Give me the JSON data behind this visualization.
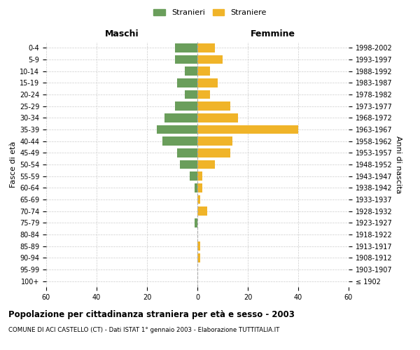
{
  "age_groups": [
    "100+",
    "95-99",
    "90-94",
    "85-89",
    "80-84",
    "75-79",
    "70-74",
    "65-69",
    "60-64",
    "55-59",
    "50-54",
    "45-49",
    "40-44",
    "35-39",
    "30-34",
    "25-29",
    "20-24",
    "15-19",
    "10-14",
    "5-9",
    "0-4"
  ],
  "birth_years": [
    "≤ 1902",
    "1903-1907",
    "1908-1912",
    "1913-1917",
    "1918-1922",
    "1923-1927",
    "1928-1932",
    "1933-1937",
    "1938-1942",
    "1943-1947",
    "1948-1952",
    "1953-1957",
    "1958-1962",
    "1963-1967",
    "1968-1972",
    "1973-1977",
    "1978-1982",
    "1983-1987",
    "1988-1992",
    "1993-1997",
    "1998-2002"
  ],
  "maschi": [
    0,
    0,
    0,
    0,
    0,
    1,
    0,
    0,
    1,
    3,
    7,
    8,
    14,
    16,
    13,
    9,
    5,
    8,
    5,
    9,
    9
  ],
  "femmine": [
    0,
    0,
    1,
    1,
    0,
    0,
    4,
    1,
    2,
    2,
    7,
    13,
    14,
    40,
    16,
    13,
    5,
    8,
    5,
    10,
    7
  ],
  "color_maschi": "#6a9e5b",
  "color_femmine": "#f0b429",
  "title": "Popolazione per cittadinanza straniera per età e sesso - 2003",
  "subtitle": "COMUNE DI ACI CASTELLO (CT) - Dati ISTAT 1° gennaio 2003 - Elaborazione TUTTITALIA.IT",
  "xlabel_left": "Maschi",
  "xlabel_right": "Femmine",
  "ylabel_left": "Fasce di età",
  "ylabel_right": "Anni di nascita",
  "legend_maschi": "Stranieri",
  "legend_femmine": "Straniere",
  "xlim": 60,
  "background_color": "#ffffff",
  "grid_color": "#cccccc"
}
